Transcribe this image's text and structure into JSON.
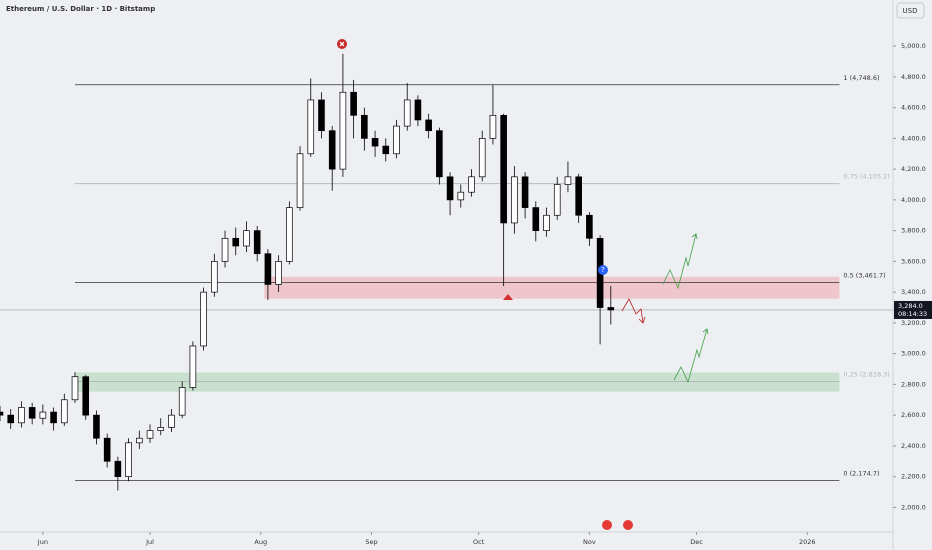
{
  "chart_data": {
    "type": "candlestick",
    "title": "Ethereum / U.S. Dollar · 1D · Bitstamp",
    "currency_button": "USD",
    "xlim": [
      -12,
      238
    ],
    "ylim": [
      1840,
      5300
    ],
    "xticks": [
      {
        "value": 0,
        "label": "Jun"
      },
      {
        "value": 30,
        "label": "Jul"
      },
      {
        "value": 61,
        "label": "Aug"
      },
      {
        "value": 92,
        "label": "Sep"
      },
      {
        "value": 122,
        "label": "Oct"
      },
      {
        "value": 153,
        "label": "Nov"
      },
      {
        "value": 183,
        "label": "Dec"
      },
      {
        "value": 214,
        "label": "2026"
      }
    ],
    "yticks": [
      {
        "value": 2000,
        "label": "2,000.0"
      },
      {
        "value": 2200,
        "label": "2,200.0"
      },
      {
        "value": 2400,
        "label": "2,400.0"
      },
      {
        "value": 2600,
        "label": "2,600.0"
      },
      {
        "value": 2800,
        "label": "2,800.0"
      },
      {
        "value": 3000,
        "label": "3,000.0"
      },
      {
        "value": 3200,
        "label": "3,200.0"
      },
      {
        "value": 3400,
        "label": "3,400.0"
      },
      {
        "value": 3600,
        "label": "3,600.0"
      },
      {
        "value": 3800,
        "label": "3,800.0"
      },
      {
        "value": 4000,
        "label": "4,000.0"
      },
      {
        "value": 4200,
        "label": "4,200.0"
      },
      {
        "value": 4400,
        "label": "4,400.0"
      },
      {
        "value": 4600,
        "label": "4,600.0"
      },
      {
        "value": 4800,
        "label": "4,800.0"
      },
      {
        "value": 5000,
        "label": "5,000.0"
      }
    ],
    "up_color": "#ffffff",
    "down_color": "#000000",
    "x": [
      -12,
      -9,
      -6,
      -3,
      0,
      3,
      6,
      9,
      12,
      15,
      18,
      21,
      24,
      27,
      30,
      33,
      36,
      39,
      42,
      45,
      48,
      51,
      54,
      57,
      60,
      63,
      66,
      69,
      72,
      75,
      78,
      81,
      84,
      87,
      90,
      93,
      96,
      99,
      102,
      105,
      108,
      111,
      114,
      117,
      120,
      123,
      126,
      129,
      132,
      135,
      138,
      141,
      144,
      147,
      150,
      153,
      156,
      159
    ],
    "open": [
      2620,
      2600,
      2550,
      2650,
      2580,
      2620,
      2550,
      2700,
      2850,
      2600,
      2450,
      2300,
      2200,
      2420,
      2450,
      2500,
      2520,
      2600,
      2780,
      3050,
      3400,
      3600,
      3750,
      3700,
      3800,
      3650,
      3450,
      3600,
      3950,
      4300,
      4650,
      4450,
      4200,
      4700,
      4550,
      4400,
      4350,
      4300,
      4480,
      4650,
      4520,
      4450,
      4150,
      4000,
      4050,
      4150,
      4400,
      4550,
      3850,
      4150,
      3950,
      3800,
      3900,
      4100,
      4150,
      3900,
      3750,
      3300
    ],
    "high": [
      2660,
      2640,
      2690,
      2680,
      2670,
      2650,
      2740,
      2880,
      2860,
      2630,
      2480,
      2330,
      2450,
      2500,
      2540,
      2580,
      2640,
      2820,
      3080,
      3430,
      3650,
      3800,
      3820,
      3860,
      3830,
      3680,
      3640,
      3990,
      4350,
      4790,
      4700,
      4480,
      4950,
      4780,
      4600,
      4450,
      4400,
      4520,
      4760,
      4680,
      4560,
      4470,
      4180,
      4100,
      4200,
      4450,
      4750,
      4560,
      4220,
      4180,
      3990,
      3950,
      4150,
      4250,
      4170,
      3920,
      3770,
      3440
    ],
    "low": [
      2560,
      2510,
      2520,
      2540,
      2540,
      2500,
      2530,
      2680,
      2570,
      2410,
      2260,
      2110,
      2170,
      2380,
      2420,
      2470,
      2490,
      2580,
      2760,
      3020,
      3370,
      3560,
      3640,
      3660,
      3600,
      3350,
      3400,
      3580,
      3930,
      4280,
      4400,
      4060,
      4150,
      4400,
      4320,
      4280,
      4250,
      4270,
      4450,
      4480,
      4400,
      4100,
      3900,
      3950,
      4020,
      4120,
      4360,
      3440,
      3780,
      3880,
      3730,
      3760,
      3870,
      4050,
      3850,
      3700,
      3060,
      3190
    ],
    "close": [
      2600,
      2550,
      2650,
      2580,
      2620,
      2550,
      2700,
      2850,
      2600,
      2450,
      2300,
      2200,
      2420,
      2450,
      2500,
      2520,
      2600,
      2780,
      3050,
      3400,
      3600,
      3750,
      3700,
      3800,
      3650,
      3450,
      3600,
      3950,
      4300,
      4650,
      4450,
      4200,
      4700,
      4550,
      4400,
      4350,
      4300,
      4480,
      4650,
      4520,
      4450,
      4150,
      4000,
      4050,
      4150,
      4400,
      4550,
      3850,
      4150,
      3950,
      3800,
      3900,
      4100,
      4150,
      3900,
      3750,
      3300,
      3284
    ],
    "levels": [
      {
        "label": "1 (4,748.6)",
        "value": 4748.6,
        "color": "#333333"
      },
      {
        "label": "0.75 (4,105.2)",
        "value": 4105.2,
        "color": "#b0b3ba"
      },
      {
        "label": "0.5 (3,461.7)",
        "value": 3461.7,
        "color": "#333333"
      },
      {
        "label": "0.25 (2,818.3)",
        "value": 2818.3,
        "color": "#b0b3ba"
      },
      {
        "label": "0 (2,174.7)",
        "value": 2174.7,
        "color": "#333333"
      }
    ],
    "level_x": [
      9,
      223
    ],
    "zones": [
      {
        "from": 3357,
        "to": 3500,
        "x": [
          62,
          223
        ],
        "color": "rgba(242,54,69,0.22)"
      },
      {
        "from": 2753,
        "to": 2877,
        "x": [
          9,
          223
        ],
        "color": "rgba(76,175,80,0.22)"
      }
    ],
    "last_price": {
      "value": 3284,
      "label": "3,284.0"
    },
    "countdown": "08:14:33"
  }
}
